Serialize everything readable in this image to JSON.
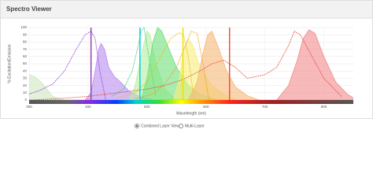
{
  "header": {
    "title": "Spectro Viewer"
  },
  "chart_data": {
    "type": "spectra",
    "xlabel": "Wavelength (nm)",
    "ylabel": "% Excitation/Emission",
    "xlim": [
      300,
      850
    ],
    "xticks": [
      300,
      400,
      500,
      600,
      700,
      800
    ],
    "ylim": [
      0,
      100
    ],
    "yticks": [
      0,
      10,
      20,
      30,
      40,
      50,
      60,
      70,
      80,
      90,
      100
    ],
    "grid": true,
    "series": [
      {
        "style": "filled",
        "color": "#cfe8c0",
        "x": [
          300,
          310,
          320,
          330,
          340,
          360
        ],
        "values": [
          35,
          32,
          25,
          15,
          5,
          0
        ]
      },
      {
        "style": "filled",
        "color": "#b98cf0",
        "x": [
          395,
          405,
          412,
          418,
          422,
          428,
          435,
          445,
          455,
          470,
          490,
          510
        ],
        "values": [
          0,
          10,
          40,
          70,
          78,
          70,
          45,
          32,
          25,
          12,
          4,
          0
        ]
      },
      {
        "style": "dashed",
        "color": "#9b3fd6",
        "x": [
          300,
          320,
          340,
          360,
          380,
          395,
          405,
          412,
          420,
          430
        ],
        "values": [
          8,
          14,
          22,
          40,
          70,
          90,
          95,
          85,
          40,
          0
        ]
      },
      {
        "style": "filled",
        "color": "#b7f0a0",
        "x": [
          470,
          480,
          490,
          500,
          505,
          515,
          530,
          550
        ],
        "values": [
          0,
          20,
          60,
          95,
          90,
          50,
          15,
          0
        ]
      },
      {
        "style": "dashed",
        "color": "#2ecc71",
        "x": [
          440,
          460,
          475,
          485,
          490,
          495,
          505,
          515
        ],
        "values": [
          5,
          15,
          40,
          75,
          95,
          100,
          50,
          5
        ]
      },
      {
        "style": "filled",
        "color": "#6ee07a",
        "x": [
          490,
          500,
          510,
          518,
          525,
          535,
          550,
          570,
          590,
          620
        ],
        "values": [
          0,
          30,
          80,
          100,
          95,
          75,
          45,
          20,
          8,
          0
        ]
      },
      {
        "style": "filled",
        "color": "#f6ef7a",
        "x": [
          545,
          555,
          562,
          570,
          578,
          590,
          610,
          630,
          650
        ],
        "values": [
          0,
          30,
          70,
          85,
          75,
          45,
          20,
          8,
          0
        ]
      },
      {
        "style": "dashed",
        "color": "#e6c300",
        "x": [
          450,
          480,
          500,
          520,
          540,
          555,
          562,
          570,
          580
        ],
        "values": [
          3,
          10,
          25,
          55,
          85,
          93,
          90,
          60,
          0
        ]
      },
      {
        "style": "filled",
        "color": "#f5b877",
        "x": [
          570,
          585,
          595,
          603,
          610,
          620,
          635,
          650,
          670,
          690
        ],
        "values": [
          0,
          25,
          65,
          90,
          95,
          75,
          40,
          18,
          6,
          0
        ]
      },
      {
        "style": "dashed",
        "color": "#f39c12",
        "x": [
          480,
          510,
          530,
          550,
          565,
          575,
          585,
          595,
          605
        ],
        "values": [
          2,
          8,
          22,
          45,
          75,
          95,
          92,
          50,
          0
        ]
      },
      {
        "style": "filled",
        "color": "#f28b8b",
        "x": [
          720,
          740,
          755,
          765,
          775,
          785,
          800,
          820,
          840,
          850
        ],
        "values": [
          0,
          20,
          55,
          85,
          97,
          92,
          60,
          25,
          8,
          3
        ]
      },
      {
        "style": "dashed",
        "color": "#e74c3c",
        "x": [
          300,
          350,
          400,
          450,
          500,
          530,
          560,
          590,
          610,
          630,
          650,
          670,
          700,
          720,
          740,
          750,
          760,
          780,
          800,
          830
        ],
        "values": [
          0,
          2,
          5,
          10,
          15,
          20,
          28,
          40,
          50,
          55,
          45,
          30,
          35,
          45,
          75,
          95,
          90,
          60,
          30,
          5
        ]
      }
    ],
    "lasers": [
      {
        "value": 405,
        "color": "#8e44ad"
      },
      {
        "value": 488,
        "color": "#00d2e6"
      },
      {
        "value": 561,
        "color": "#efe000"
      },
      {
        "value": 640,
        "color": "#e5533d"
      }
    ]
  },
  "controls": [
    "Combined Laser View",
    "Multi-Laser"
  ]
}
